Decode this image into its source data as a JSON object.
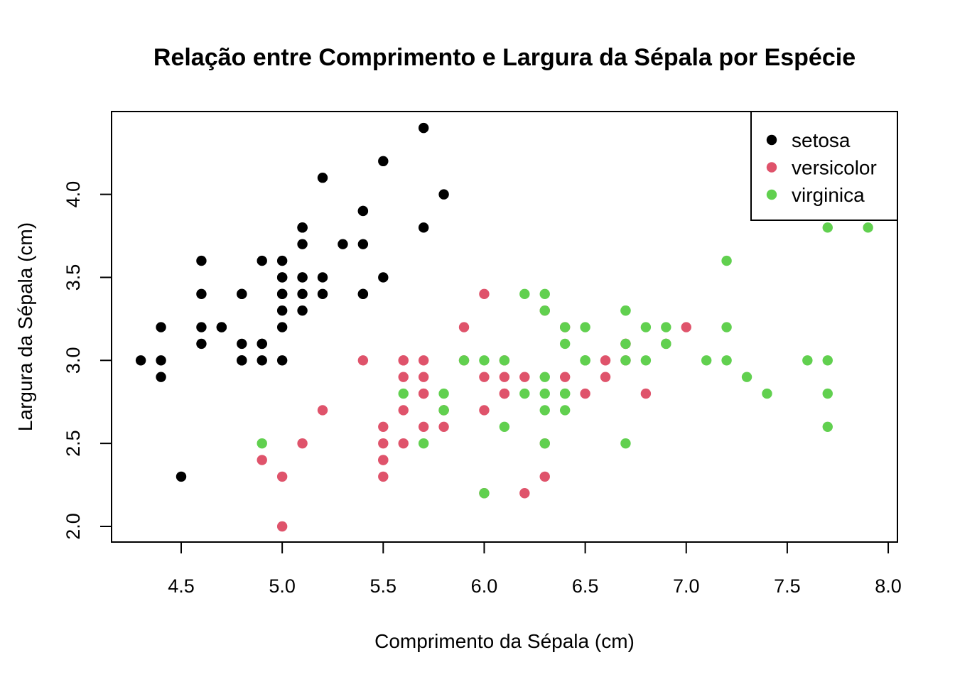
{
  "chart_data": {
    "type": "scatter",
    "title": "Relação entre Comprimento e Largura da Sépala por Espécie",
    "xlabel": "Comprimento da Sépala (cm)",
    "ylabel": "Largura da Sépala (cm)",
    "xlim": [
      4.3,
      7.9
    ],
    "ylim": [
      2.0,
      4.4
    ],
    "xticks": [
      "4.5",
      "5.0",
      "5.5",
      "6.0",
      "6.5",
      "7.0",
      "7.5",
      "8.0"
    ],
    "yticks": [
      "2.0",
      "2.5",
      "3.0",
      "3.5",
      "4.0"
    ],
    "grid": false,
    "legend_position": "top-right",
    "series": [
      {
        "name": "setosa",
        "color": "#000000",
        "points": [
          [
            5.1,
            3.5
          ],
          [
            4.9,
            3.0
          ],
          [
            4.7,
            3.2
          ],
          [
            4.6,
            3.1
          ],
          [
            5.0,
            3.6
          ],
          [
            5.4,
            3.9
          ],
          [
            4.6,
            3.4
          ],
          [
            5.0,
            3.4
          ],
          [
            4.4,
            2.9
          ],
          [
            4.9,
            3.1
          ],
          [
            5.4,
            3.7
          ],
          [
            4.8,
            3.4
          ],
          [
            4.8,
            3.0
          ],
          [
            4.3,
            3.0
          ],
          [
            5.8,
            4.0
          ],
          [
            5.7,
            4.4
          ],
          [
            5.4,
            3.9
          ],
          [
            5.1,
            3.5
          ],
          [
            5.7,
            3.8
          ],
          [
            5.1,
            3.8
          ],
          [
            5.4,
            3.4
          ],
          [
            5.1,
            3.7
          ],
          [
            4.6,
            3.6
          ],
          [
            5.1,
            3.3
          ],
          [
            4.8,
            3.4
          ],
          [
            5.0,
            3.0
          ],
          [
            5.0,
            3.4
          ],
          [
            5.2,
            3.5
          ],
          [
            5.2,
            3.4
          ],
          [
            4.7,
            3.2
          ],
          [
            4.8,
            3.1
          ],
          [
            5.4,
            3.4
          ],
          [
            5.2,
            4.1
          ],
          [
            5.5,
            4.2
          ],
          [
            4.9,
            3.1
          ],
          [
            5.0,
            3.2
          ],
          [
            5.5,
            3.5
          ],
          [
            4.9,
            3.6
          ],
          [
            4.4,
            3.0
          ],
          [
            5.1,
            3.4
          ],
          [
            5.0,
            3.5
          ],
          [
            4.5,
            2.3
          ],
          [
            4.4,
            3.2
          ],
          [
            5.0,
            3.5
          ],
          [
            5.1,
            3.8
          ],
          [
            4.8,
            3.0
          ],
          [
            5.1,
            3.8
          ],
          [
            4.6,
            3.2
          ],
          [
            5.3,
            3.7
          ],
          [
            5.0,
            3.3
          ]
        ]
      },
      {
        "name": "versicolor",
        "color": "#DF536B",
        "points": [
          [
            7.0,
            3.2
          ],
          [
            6.4,
            3.2
          ],
          [
            6.9,
            3.1
          ],
          [
            5.5,
            2.3
          ],
          [
            6.5,
            2.8
          ],
          [
            5.7,
            2.8
          ],
          [
            6.3,
            3.3
          ],
          [
            4.9,
            2.4
          ],
          [
            6.6,
            2.9
          ],
          [
            5.2,
            2.7
          ],
          [
            5.0,
            2.0
          ],
          [
            5.9,
            3.0
          ],
          [
            6.0,
            2.2
          ],
          [
            6.1,
            2.9
          ],
          [
            5.6,
            2.9
          ],
          [
            6.7,
            3.1
          ],
          [
            5.6,
            3.0
          ],
          [
            5.8,
            2.7
          ],
          [
            6.2,
            2.2
          ],
          [
            5.6,
            2.5
          ],
          [
            5.9,
            3.2
          ],
          [
            6.1,
            2.8
          ],
          [
            6.3,
            2.5
          ],
          [
            6.1,
            2.8
          ],
          [
            6.4,
            2.9
          ],
          [
            6.6,
            3.0
          ],
          [
            6.8,
            2.8
          ],
          [
            6.7,
            3.0
          ],
          [
            6.0,
            2.9
          ],
          [
            5.7,
            2.6
          ],
          [
            5.5,
            2.4
          ],
          [
            5.5,
            2.4
          ],
          [
            5.8,
            2.7
          ],
          [
            6.0,
            2.7
          ],
          [
            5.4,
            3.0
          ],
          [
            6.0,
            3.4
          ],
          [
            6.7,
            3.1
          ],
          [
            6.3,
            2.3
          ],
          [
            5.6,
            3.0
          ],
          [
            5.5,
            2.5
          ],
          [
            5.5,
            2.6
          ],
          [
            6.1,
            3.0
          ],
          [
            5.8,
            2.6
          ],
          [
            5.0,
            2.3
          ],
          [
            5.6,
            2.7
          ],
          [
            5.7,
            3.0
          ],
          [
            5.7,
            2.9
          ],
          [
            6.2,
            2.9
          ],
          [
            5.1,
            2.5
          ],
          [
            5.7,
            2.8
          ]
        ]
      },
      {
        "name": "virginica",
        "color": "#61D04F",
        "points": [
          [
            6.3,
            3.3
          ],
          [
            5.8,
            2.7
          ],
          [
            7.1,
            3.0
          ],
          [
            6.3,
            2.9
          ],
          [
            6.5,
            3.0
          ],
          [
            7.6,
            3.0
          ],
          [
            4.9,
            2.5
          ],
          [
            7.3,
            2.9
          ],
          [
            6.7,
            2.5
          ],
          [
            7.2,
            3.6
          ],
          [
            6.5,
            3.2
          ],
          [
            6.4,
            2.7
          ],
          [
            6.8,
            3.0
          ],
          [
            5.7,
            2.5
          ],
          [
            5.8,
            2.8
          ],
          [
            6.4,
            3.2
          ],
          [
            6.5,
            3.0
          ],
          [
            7.7,
            3.8
          ],
          [
            7.7,
            2.6
          ],
          [
            6.0,
            2.2
          ],
          [
            6.9,
            3.2
          ],
          [
            5.6,
            2.8
          ],
          [
            7.7,
            2.8
          ],
          [
            6.3,
            2.7
          ],
          [
            6.7,
            3.3
          ],
          [
            7.2,
            3.2
          ],
          [
            6.2,
            2.8
          ],
          [
            6.1,
            3.0
          ],
          [
            6.4,
            2.8
          ],
          [
            7.2,
            3.0
          ],
          [
            7.4,
            2.8
          ],
          [
            7.9,
            3.8
          ],
          [
            6.4,
            2.8
          ],
          [
            6.3,
            2.8
          ],
          [
            6.1,
            2.6
          ],
          [
            7.7,
            3.0
          ],
          [
            6.3,
            3.4
          ],
          [
            6.4,
            3.1
          ],
          [
            6.0,
            3.0
          ],
          [
            6.9,
            3.1
          ],
          [
            6.7,
            3.1
          ],
          [
            6.9,
            3.1
          ],
          [
            5.8,
            2.7
          ],
          [
            6.8,
            3.2
          ],
          [
            6.7,
            3.3
          ],
          [
            6.7,
            3.0
          ],
          [
            6.3,
            2.5
          ],
          [
            6.5,
            3.0
          ],
          [
            6.2,
            3.4
          ],
          [
            5.9,
            3.0
          ]
        ]
      }
    ]
  }
}
